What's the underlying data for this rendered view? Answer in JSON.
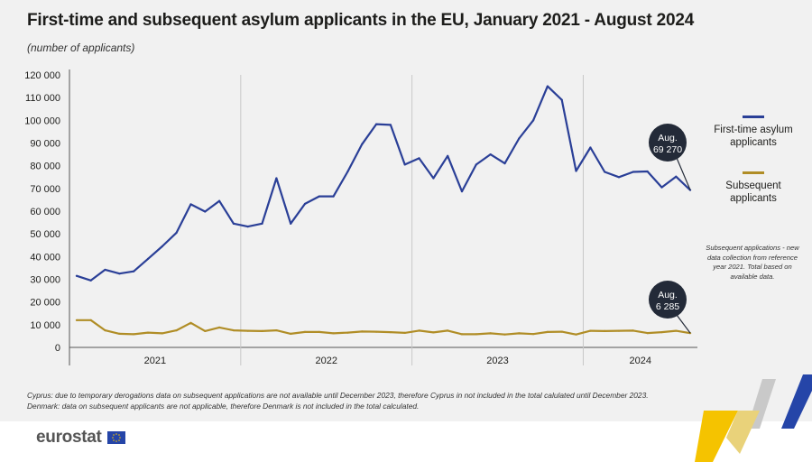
{
  "title": "First-time and subsequent asylum applicants in the EU, January 2021 - August 2024",
  "subtitle": "(number of applicants)",
  "chart_data": {
    "type": "line",
    "x": [
      "2021-01",
      "2021-02",
      "2021-03",
      "2021-04",
      "2021-05",
      "2021-06",
      "2021-07",
      "2021-08",
      "2021-09",
      "2021-10",
      "2021-11",
      "2021-12",
      "2022-01",
      "2022-02",
      "2022-03",
      "2022-04",
      "2022-05",
      "2022-06",
      "2022-07",
      "2022-08",
      "2022-09",
      "2022-10",
      "2022-11",
      "2022-12",
      "2023-01",
      "2023-02",
      "2023-03",
      "2023-04",
      "2023-05",
      "2023-06",
      "2023-07",
      "2023-08",
      "2023-09",
      "2023-10",
      "2023-11",
      "2023-12",
      "2024-01",
      "2024-02",
      "2024-03",
      "2024-04",
      "2024-05",
      "2024-06",
      "2024-07",
      "2024-08"
    ],
    "year_labels": [
      "2021",
      "2022",
      "2023",
      "2024"
    ],
    "ylim": [
      0,
      120000
    ],
    "yticks": [
      0,
      10000,
      20000,
      30000,
      40000,
      50000,
      60000,
      70000,
      80000,
      90000,
      100000,
      110000,
      120000
    ],
    "ytick_labels": [
      "0",
      "10 000",
      "20 000",
      "30 000",
      "40 000",
      "50 000",
      "60 000",
      "70 000",
      "80 000",
      "90 000",
      "100 000",
      "110 000",
      "120 000"
    ],
    "series": [
      {
        "name": "First-time asylum applicants",
        "color": "#2a3f97",
        "values": [
          31500,
          29500,
          34200,
          32500,
          33500,
          39000,
          44500,
          50500,
          63000,
          59800,
          64500,
          54500,
          53200,
          54500,
          74500,
          54500,
          63200,
          66500,
          66500,
          77500,
          89500,
          98300,
          98000,
          80500,
          83300,
          74500,
          84300,
          68700,
          80500,
          85000,
          81000,
          92000,
          100000,
          115000,
          109000,
          77700,
          88000,
          77300,
          75000,
          77300,
          77500,
          70500,
          75200,
          69270
        ]
      },
      {
        "name": "Subsequent applicants",
        "color": "#b08d26",
        "values": [
          12000,
          12000,
          7500,
          6000,
          5800,
          6500,
          6200,
          7500,
          10800,
          7200,
          8800,
          7500,
          7300,
          7200,
          7500,
          6000,
          6800,
          6800,
          6200,
          6500,
          7000,
          6900,
          6700,
          6400,
          7400,
          6600,
          7400,
          5800,
          5800,
          6200,
          5700,
          6200,
          5900,
          6800,
          6900,
          5700,
          7300,
          7200,
          7300,
          7400,
          6300,
          6700,
          7300,
          6285
        ]
      }
    ],
    "annotations": [
      {
        "series": 0,
        "month": "Aug.",
        "value_label": "69 270"
      },
      {
        "series": 1,
        "month": "Aug.",
        "value_label": "6 285"
      }
    ],
    "grid": "vertical year separators"
  },
  "legend": {
    "first_time": "First-time asylum applicants",
    "subsequent": "Subsequent applicants"
  },
  "side_note": "Subsequent applications - new data collection from reference year 2021. Total based on available data.",
  "footnotes": [
    "Cyprus: due to temporary derogations data on subsequent applications are not available until December 2023, therefore Cyprus in not included in the total calulated until December 2023.",
    "Denmark: data on subsequent applicants are not applicable, therefore Denmark is not included in the total calculated."
  ],
  "logo_text": "eurostat",
  "colors": {
    "first_time": "#2a3f97",
    "subsequent": "#b08d26",
    "panel_bg": "#f1f1f1",
    "callout_bg": "#232a38",
    "brand_yellow": "#f5c300",
    "brand_blue": "#2545a8"
  }
}
